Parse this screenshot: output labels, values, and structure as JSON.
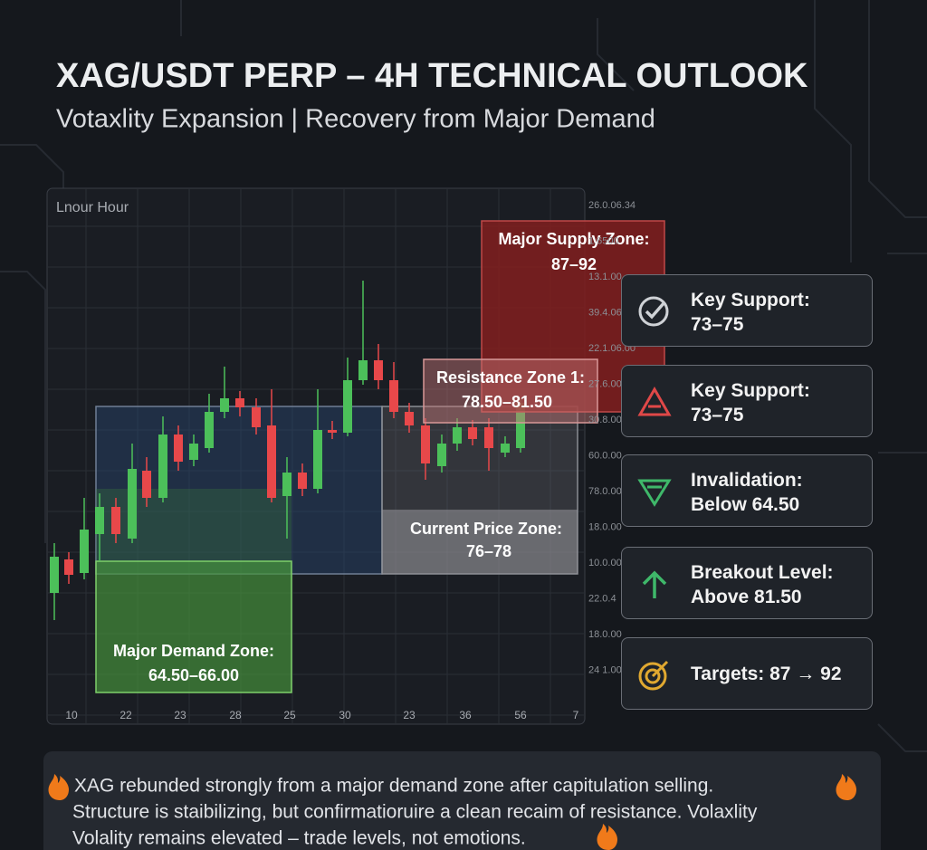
{
  "header": {
    "title": "XAG/USDT PERP – 4H TECHNICAL OUTLOOK",
    "subtitle": "Votaxlity Expansion | Recovery from Major Demand"
  },
  "chart": {
    "label": "Lnour Hour",
    "right_axis": [
      "26.0.06.34",
      "1.6500",
      "13.1.00",
      "39.4.06.00",
      "22.1.06.00",
      "27.6.00",
      "30.8.00",
      "60.0.00",
      "78.0.00",
      "18.0.00",
      "10.0.00",
      "22.0.4",
      "18.0.00",
      "24 1.00"
    ],
    "x_axis": [
      "10",
      "22",
      "23",
      "28",
      "25",
      "30",
      "23",
      "36",
      "56",
      "7"
    ],
    "zones": {
      "supply": {
        "title": "Major Supply Zone:",
        "range": "87–92"
      },
      "resistance": {
        "title": "Resistance Zone 1:",
        "range": "78.50–81.50"
      },
      "current": {
        "title": "Current Price Zone:",
        "range": "76–78"
      },
      "demand": {
        "title": "Major Demand Zone:",
        "range": "64.50–66.00"
      }
    }
  },
  "cards": [
    {
      "title": "Key Support:",
      "value": "73–75"
    },
    {
      "title": "Key Support:",
      "value": "73–75"
    },
    {
      "title": "Invalidation:",
      "value": "Below 64.50"
    },
    {
      "title": "Breakout Level:",
      "value": "Above 81.50"
    },
    {
      "title": "Targets: 87 → 92"
    }
  ],
  "footer": {
    "lines": [
      "XAG rebunded strongly from a major demand zone after capitulation selling.",
      "Structure is staibilizing, but confirmatioruire a clean recaim of resistance. Volaxlity",
      "Volality remains elevated – trade levels, not emotions."
    ]
  }
}
